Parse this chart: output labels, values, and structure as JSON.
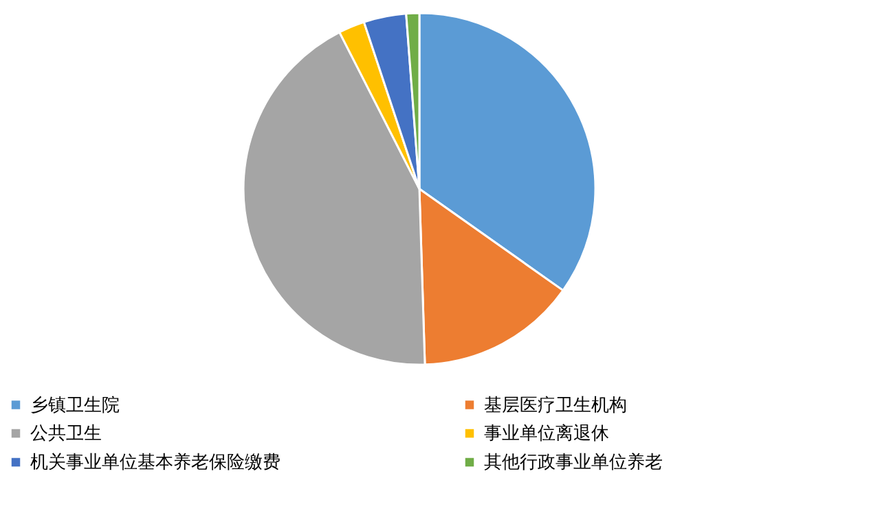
{
  "chart_data": {
    "type": "pie",
    "categories": [
      "乡镇卫生院",
      "基层医疗卫生机构",
      "公共卫生",
      "事业单位离退休",
      "机关事业单位基本养老保险缴费",
      "其他行政事业单位养老"
    ],
    "values": [
      34.8,
      14.7,
      43.0,
      2.4,
      3.9,
      1.2
    ],
    "colors": [
      "#5b9bd5",
      "#ed7d31",
      "#a5a5a5",
      "#ffc000",
      "#4472c4",
      "#70ad47"
    ],
    "legend": "bottom"
  }
}
